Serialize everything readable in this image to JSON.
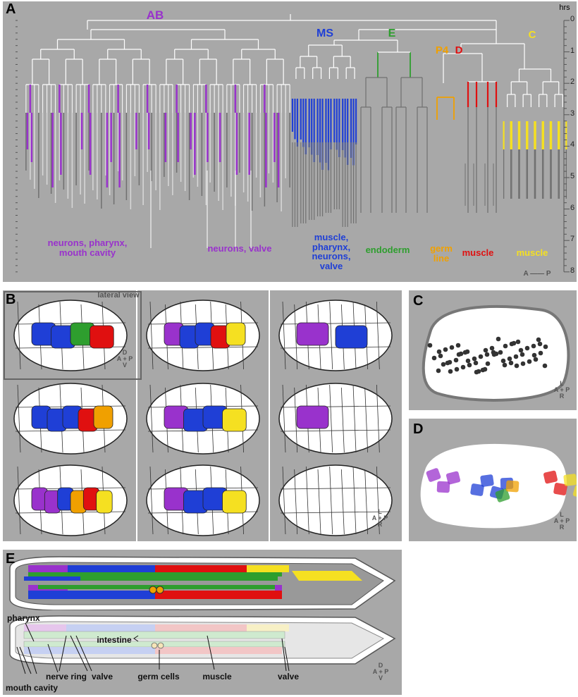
{
  "panel_a": {
    "letter": "A",
    "axis_unit": "hrs",
    "axis_ticks": [
      "0",
      "1",
      "2",
      "3",
      "4",
      "5",
      "6",
      "7",
      "8"
    ],
    "lineages": {
      "ab": "AB",
      "ms": "MS",
      "e": "E",
      "p4": "P4",
      "d": "D",
      "c": "C"
    },
    "fates": {
      "ab_left": "neurons, pharynx, mouth cavity",
      "ab_right": "neurons, valve",
      "ms": "muscle, pharynx, neurons, valve",
      "e": "endoderm",
      "p4": "germ line",
      "d": "muscle",
      "c": "muscle"
    },
    "compass": {
      "a": "A",
      "p": "P"
    }
  },
  "panel_b": {
    "letter": "B",
    "lateral_view": "lateral view",
    "compass_dv": {
      "d": "D",
      "v": "V",
      "a": "A",
      "p": "P"
    },
    "compass_lr": {
      "l": "L",
      "r": "R",
      "a": "A",
      "p": "P"
    }
  },
  "panel_c": {
    "letter": "C",
    "compass": {
      "l": "L",
      "r": "R",
      "a": "A",
      "p": "P"
    }
  },
  "panel_d": {
    "letter": "D",
    "compass": {
      "l": "L",
      "r": "R",
      "a": "A",
      "p": "P"
    }
  },
  "panel_e": {
    "letter": "E",
    "labels": {
      "pharynx": "pharynx",
      "intestine": "intestine",
      "nerve_ring": "nerve ring",
      "valve1": "valve",
      "germ_cells": "germ cells",
      "muscle": "muscle",
      "valve2": "valve",
      "mouth_cavity": "mouth cavity"
    },
    "compass": {
      "d": "D",
      "v": "V",
      "a": "A",
      "p": "P"
    }
  },
  "colors": {
    "panel_bg": "#a8a8a8",
    "ab": "#9932CC",
    "ms": "#1f3fd6",
    "e": "#2e9e2e",
    "p4": "#f0a000",
    "d": "#e01010",
    "c": "#f5e021"
  }
}
